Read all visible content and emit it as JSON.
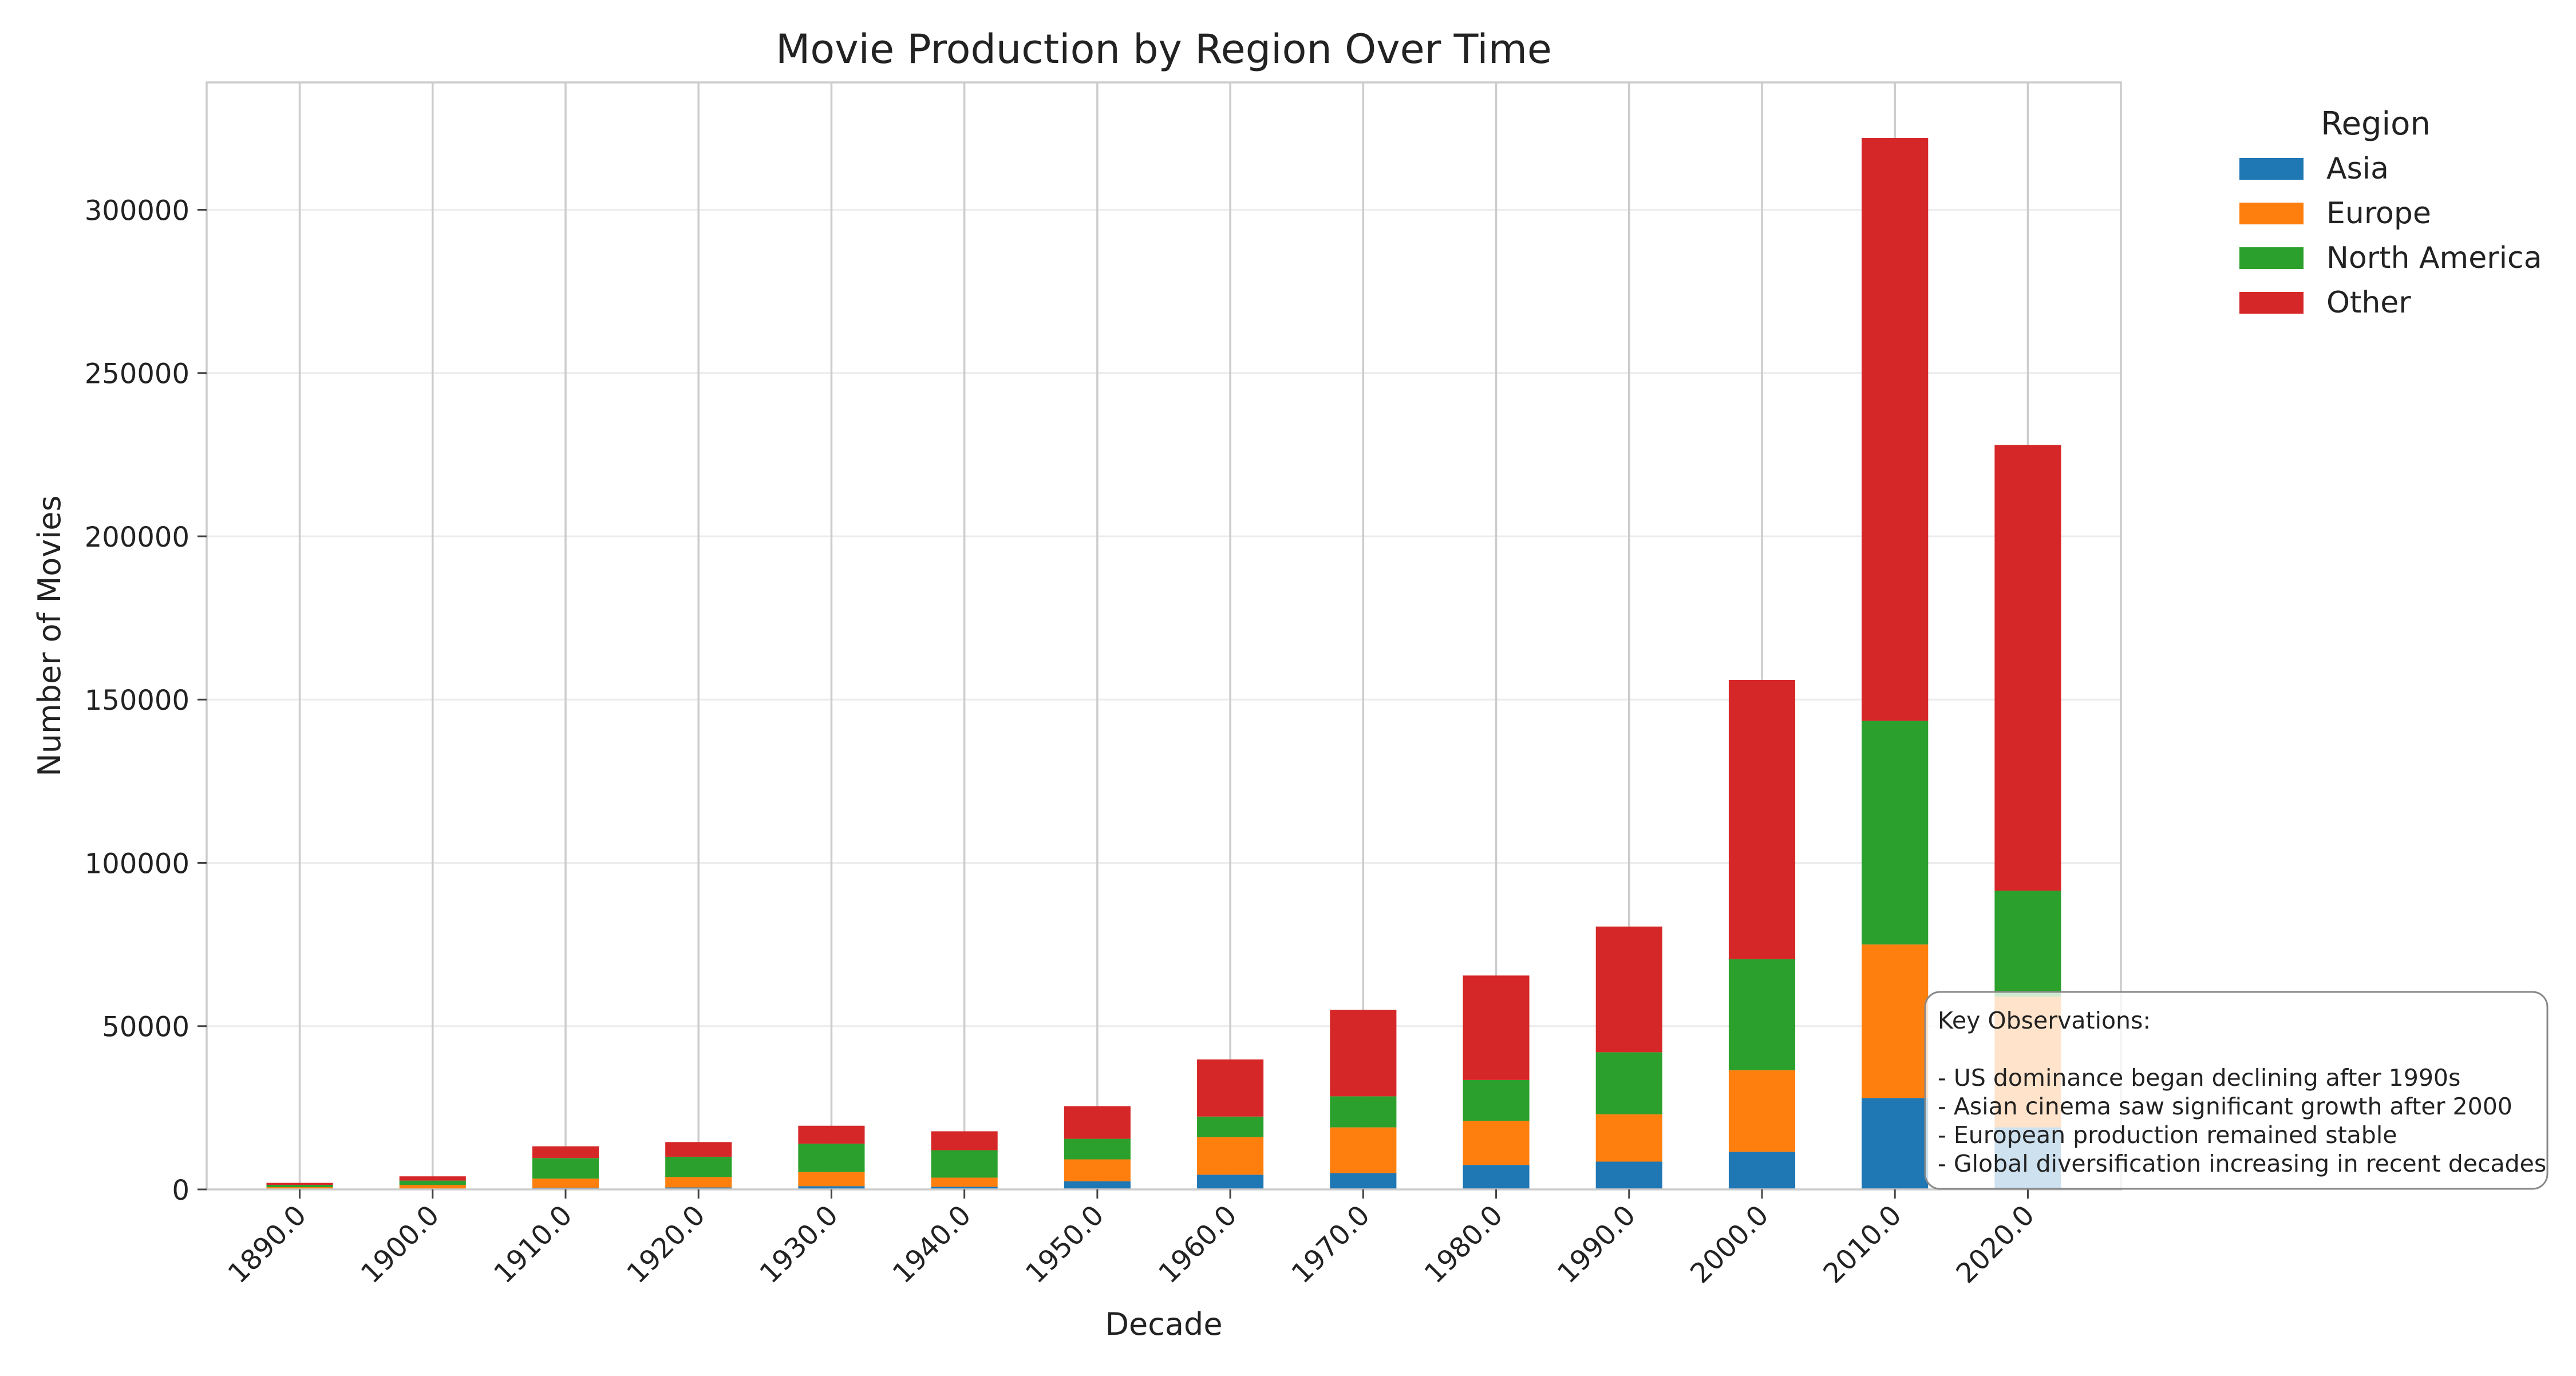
{
  "chart_data": {
    "type": "bar",
    "stacked": true,
    "title": "Movie Production by Region Over Time",
    "xlabel": "Decade",
    "ylabel": "Number of Movies",
    "categories": [
      "1890.0",
      "1900.0",
      "1910.0",
      "1920.0",
      "1930.0",
      "1940.0",
      "1950.0",
      "1960.0",
      "1970.0",
      "1980.0",
      "1990.0",
      "2000.0",
      "2010.0",
      "2020.0"
    ],
    "ylim": [
      0,
      339000
    ],
    "yticks": [
      0,
      50000,
      100000,
      150000,
      200000,
      250000,
      300000
    ],
    "ytick_labels": [
      "0",
      "50000",
      "100000",
      "150000",
      "200000",
      "250000",
      "300000"
    ],
    "grid": true,
    "legend": {
      "title": "Region",
      "placement": "outside-top-right"
    },
    "series": [
      {
        "name": "Asia",
        "color": "#1f77b4",
        "values": [
          100,
          200,
          500,
          600,
          1000,
          800,
          2500,
          4500,
          5000,
          7500,
          8500,
          11500,
          28000,
          19000
        ]
      },
      {
        "name": "Europe",
        "color": "#ff7f0e",
        "values": [
          600,
          1200,
          2800,
          3200,
          4300,
          2800,
          6700,
          11500,
          14000,
          13500,
          14500,
          25000,
          47000,
          40000
        ]
      },
      {
        "name": "North America",
        "color": "#2ca02c",
        "values": [
          700,
          1300,
          6300,
          6200,
          8700,
          8400,
          6300,
          6300,
          9500,
          12500,
          19000,
          34000,
          68500,
          32500
        ]
      },
      {
        "name": "Other",
        "color": "#d62728",
        "values": [
          600,
          1300,
          3600,
          4500,
          5500,
          5800,
          10000,
          17500,
          26500,
          32000,
          38500,
          85500,
          178500,
          136500
        ]
      }
    ],
    "annotation": {
      "lines": [
        "Key Observations:",
        "",
        "- US dominance began declining after 1990s",
        "- Asian cinema saw significant growth after 2000",
        "- European production remained stable",
        "- Global diversification increasing in recent decades"
      ]
    }
  }
}
